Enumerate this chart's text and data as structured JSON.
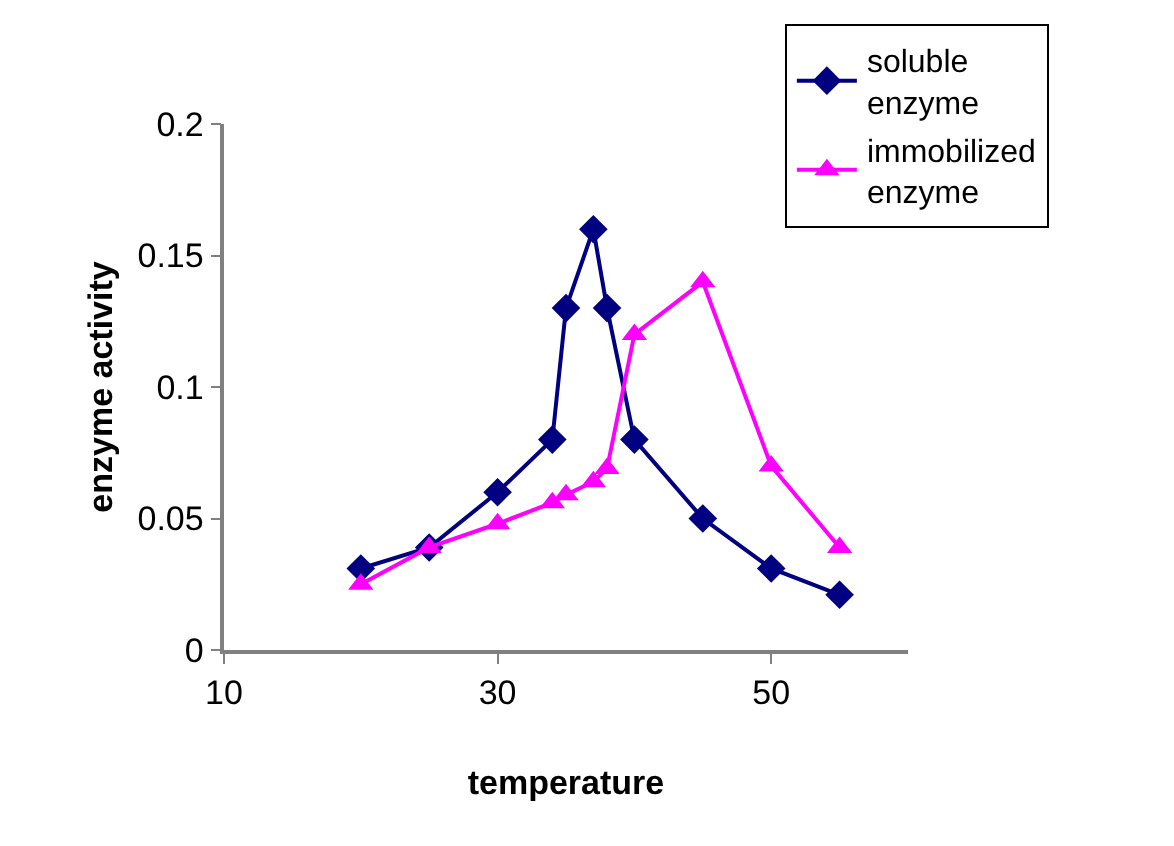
{
  "chart_data": {
    "type": "line",
    "xlabel": "temperature",
    "ylabel": "enzyme activity",
    "series": [
      {
        "name": "soluble enzyme",
        "color": "#000080",
        "marker": "diamond",
        "x": [
          20,
          25,
          30,
          34,
          35,
          37,
          38,
          40,
          45,
          50,
          55
        ],
        "values": [
          0.031,
          0.039,
          0.06,
          0.08,
          0.13,
          0.16,
          0.13,
          0.08,
          0.05,
          0.031,
          0.021
        ]
      },
      {
        "name": "immobilized enzyme",
        "color": "#ff00ff",
        "marker": "triangle",
        "x": [
          20,
          25,
          30,
          34,
          35,
          37,
          38,
          40,
          45,
          50,
          55
        ],
        "values": [
          0.025,
          0.039,
          0.048,
          0.056,
          0.059,
          0.064,
          0.069,
          0.12,
          0.14,
          0.07,
          0.039
        ]
      }
    ],
    "xlim": [
      10,
      60
    ],
    "xticks": [
      10,
      30,
      50
    ],
    "ylim": [
      0,
      0.2
    ],
    "yticks": [
      0,
      0.05,
      0.1,
      0.15,
      0.2
    ],
    "legend": "top right"
  }
}
